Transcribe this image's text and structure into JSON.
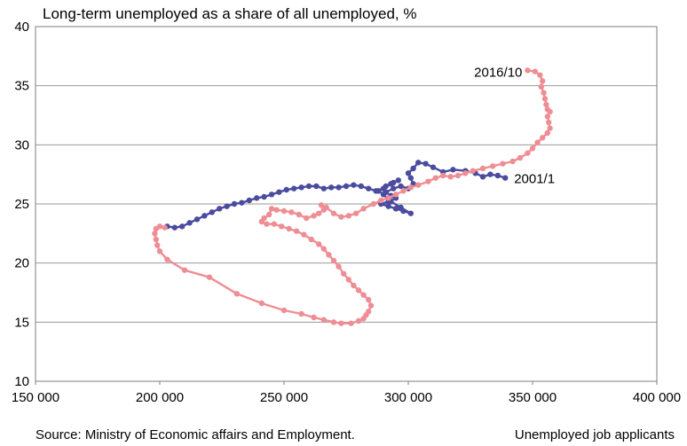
{
  "chart_data": {
    "type": "scatter",
    "title": "Long-term unemployed as a share of all unemployed, %",
    "xlabel": "Unemployed job applicants",
    "ylabel": "",
    "source": "Source: Ministry of Economic affairs and Employment.",
    "xlim": [
      150000,
      400000
    ],
    "ylim": [
      10,
      40
    ],
    "xticks": [
      "150 000",
      "200 000",
      "250 000",
      "300 000",
      "350 000",
      "400 000"
    ],
    "yticks": [
      "10",
      "15",
      "20",
      "25",
      "30",
      "35",
      "40"
    ],
    "grid": true,
    "annotations": [
      {
        "text": "2016/10",
        "x": 348000,
        "y": 36.3
      },
      {
        "text": "2001/1",
        "x": 339000,
        "y": 27.2
      }
    ],
    "series": [
      {
        "color": "#4b4ba0",
        "points": [
          [
            339000,
            27.2
          ],
          [
            336000,
            27.4
          ],
          [
            333000,
            27.5
          ],
          [
            330000,
            27.3
          ],
          [
            327000,
            27.6
          ],
          [
            323000,
            27.8
          ],
          [
            318000,
            27.9
          ],
          [
            314000,
            27.7
          ],
          [
            310000,
            28.1
          ],
          [
            307000,
            28.4
          ],
          [
            304000,
            28.5
          ],
          [
            302000,
            28.0
          ],
          [
            300000,
            27.6
          ],
          [
            301000,
            27.2
          ],
          [
            302000,
            26.7
          ],
          [
            300000,
            26.3
          ],
          [
            297000,
            26.5
          ],
          [
            294000,
            26.3
          ],
          [
            291000,
            26.0
          ],
          [
            293000,
            25.7
          ],
          [
            295000,
            25.5
          ],
          [
            292000,
            25.2
          ],
          [
            289000,
            25.0
          ],
          [
            292000,
            24.8
          ],
          [
            295000,
            24.6
          ],
          [
            298000,
            24.4
          ],
          [
            301000,
            24.2
          ],
          [
            297000,
            24.7
          ],
          [
            293000,
            25.2
          ],
          [
            290000,
            25.8
          ],
          [
            288000,
            26.1
          ],
          [
            291000,
            26.5
          ],
          [
            294000,
            26.8
          ],
          [
            296000,
            27.0
          ],
          [
            293000,
            26.7
          ],
          [
            290000,
            26.3
          ],
          [
            287000,
            26.1
          ],
          [
            284000,
            26.3
          ],
          [
            281000,
            26.5
          ],
          [
            278000,
            26.6
          ],
          [
            275000,
            26.5
          ],
          [
            272000,
            26.4
          ],
          [
            269000,
            26.4
          ],
          [
            266000,
            26.3
          ],
          [
            263000,
            26.5
          ],
          [
            260000,
            26.5
          ],
          [
            257000,
            26.4
          ],
          [
            254000,
            26.3
          ],
          [
            251000,
            26.2
          ],
          [
            248000,
            26.0
          ],
          [
            245000,
            25.8
          ],
          [
            242000,
            25.6
          ],
          [
            239000,
            25.5
          ],
          [
            236000,
            25.3
          ],
          [
            233000,
            25.1
          ],
          [
            230000,
            25.0
          ],
          [
            227000,
            24.8
          ],
          [
            224000,
            24.6
          ],
          [
            221000,
            24.3
          ],
          [
            218000,
            24.0
          ],
          [
            215000,
            23.7
          ],
          [
            212000,
            23.4
          ],
          [
            209000,
            23.1
          ],
          [
            206000,
            23.0
          ],
          [
            203000,
            23.1
          ]
        ]
      },
      {
        "color": "#ee8e94",
        "points": [
          [
            348000,
            36.3
          ],
          [
            351000,
            36.2
          ],
          [
            353000,
            35.9
          ],
          [
            354000,
            35.4
          ],
          [
            353500,
            34.9
          ],
          [
            354500,
            34.4
          ],
          [
            355000,
            33.9
          ],
          [
            355500,
            33.4
          ],
          [
            356000,
            33.0
          ],
          [
            357000,
            32.8
          ],
          [
            356000,
            32.4
          ],
          [
            356500,
            31.9
          ],
          [
            357000,
            31.4
          ],
          [
            356000,
            31.0
          ],
          [
            354000,
            30.6
          ],
          [
            352000,
            30.2
          ],
          [
            350000,
            29.7
          ],
          [
            348000,
            29.3
          ],
          [
            345000,
            28.9
          ],
          [
            342000,
            28.6
          ],
          [
            338000,
            28.4
          ],
          [
            334000,
            28.2
          ],
          [
            330000,
            28.0
          ],
          [
            326000,
            27.8
          ],
          [
            323000,
            27.6
          ],
          [
            320000,
            27.4
          ],
          [
            317000,
            27.3
          ],
          [
            314000,
            27.4
          ],
          [
            311000,
            27.2
          ],
          [
            308000,
            26.9
          ],
          [
            304000,
            26.6
          ],
          [
            301000,
            26.4
          ],
          [
            298000,
            26.1
          ],
          [
            295000,
            25.8
          ],
          [
            292000,
            25.5
          ],
          [
            289000,
            25.3
          ],
          [
            286000,
            25.0
          ],
          [
            282000,
            24.6
          ],
          [
            279000,
            24.2
          ],
          [
            276000,
            24.0
          ],
          [
            273000,
            23.9
          ],
          [
            270000,
            24.2
          ],
          [
            267000,
            24.7
          ],
          [
            265000,
            24.9
          ],
          [
            266000,
            24.5
          ],
          [
            264000,
            24.2
          ],
          [
            262000,
            24.0
          ],
          [
            259000,
            23.8
          ],
          [
            256000,
            24.1
          ],
          [
            253000,
            24.3
          ],
          [
            250000,
            24.4
          ],
          [
            247000,
            24.5
          ],
          [
            245000,
            24.6
          ],
          [
            244000,
            24.1
          ],
          [
            242000,
            23.8
          ],
          [
            241000,
            23.5
          ],
          [
            243000,
            23.3
          ],
          [
            246000,
            23.3
          ],
          [
            249000,
            23.1
          ],
          [
            252000,
            22.9
          ],
          [
            255000,
            22.7
          ],
          [
            258000,
            22.4
          ],
          [
            261000,
            22.0
          ],
          [
            264000,
            21.6
          ],
          [
            266000,
            21.2
          ],
          [
            268000,
            20.7
          ],
          [
            270000,
            20.2
          ],
          [
            272000,
            19.7
          ],
          [
            274000,
            19.1
          ],
          [
            276000,
            18.6
          ],
          [
            278000,
            18.1
          ],
          [
            280000,
            17.7
          ],
          [
            282000,
            17.3
          ],
          [
            284000,
            16.9
          ],
          [
            285000,
            16.4
          ],
          [
            284000,
            15.9
          ],
          [
            283000,
            15.6
          ],
          [
            282000,
            15.3
          ],
          [
            280000,
            15.1
          ],
          [
            277000,
            14.9
          ],
          [
            273000,
            14.9
          ],
          [
            270000,
            15.0
          ],
          [
            266000,
            15.2
          ],
          [
            262000,
            15.4
          ],
          [
            257000,
            15.7
          ],
          [
            250000,
            16.0
          ],
          [
            241000,
            16.6
          ],
          [
            231000,
            17.4
          ],
          [
            220000,
            18.8
          ],
          [
            210000,
            19.4
          ],
          [
            203000,
            20.3
          ],
          [
            200000,
            21.0
          ],
          [
            199000,
            21.5
          ],
          [
            198500,
            22.0
          ],
          [
            198000,
            22.5
          ],
          [
            198500,
            22.9
          ],
          [
            200000,
            23.1
          ],
          [
            202000,
            23.0
          ]
        ]
      }
    ]
  }
}
